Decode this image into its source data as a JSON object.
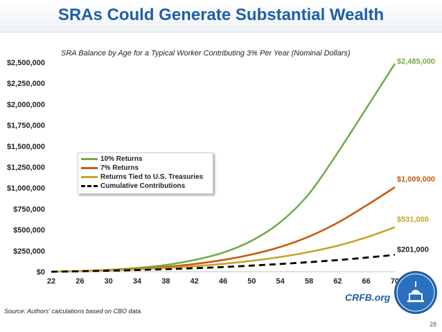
{
  "header": {
    "title": "SRAs Could Generate Substantial Wealth"
  },
  "chart_data": {
    "type": "line",
    "subtitle": "SRA Balance by Age for a Typical Worker Contributing 3% Per Year (Nominal Dollars)",
    "x": [
      22,
      26,
      30,
      34,
      38,
      42,
      46,
      50,
      54,
      58,
      62,
      66,
      70
    ],
    "xticks": [
      "22",
      "26",
      "30",
      "34",
      "38",
      "42",
      "46",
      "50",
      "54",
      "58",
      "62",
      "66",
      "70"
    ],
    "yticks": [
      "$0",
      "$250,000",
      "$500,000",
      "$750,000",
      "$1,000,000",
      "$1,250,000",
      "$1,500,000",
      "$1,750,000",
      "$2,000,000",
      "$2,250,000",
      "$2,500,000"
    ],
    "xlim": [
      22,
      70
    ],
    "ylim": [
      0,
      2500000
    ],
    "series": [
      {
        "name": "10% Returns",
        "color": "#70ad47",
        "dash": false,
        "endlabel": "$2,485,000",
        "values": [
          0,
          8000,
          22000,
          44000,
          80000,
          140000,
          228000,
          370000,
          592000,
          930000,
          1420000,
          1950000,
          2485000
        ]
      },
      {
        "name": "7% Returns",
        "color": "#c55a11",
        "dash": false,
        "endlabel": "$1,009,000",
        "values": [
          0,
          7000,
          18000,
          34000,
          58000,
          92000,
          140000,
          206000,
          296000,
          420000,
          585000,
          790000,
          1009000
        ]
      },
      {
        "name": "Returns Tied to U.S. Treasuries",
        "color": "#c9a227",
        "dash": false,
        "endlabel": "$531,000",
        "values": [
          0,
          6000,
          15000,
          27000,
          44000,
          66000,
          94000,
          130000,
          176000,
          235000,
          310000,
          410000,
          531000
        ]
      },
      {
        "name": "Cumulative Contributions",
        "color": "#000000",
        "dash": true,
        "endlabel": "$201,000",
        "values": [
          0,
          5000,
          12000,
          20000,
          30000,
          42000,
          56000,
          73000,
          92000,
          114000,
          139000,
          168000,
          201000
        ]
      }
    ]
  },
  "footer": {
    "source": "Source: Authors' calculations based on CBO data.",
    "brand": "CRFB.org",
    "page": "28"
  }
}
